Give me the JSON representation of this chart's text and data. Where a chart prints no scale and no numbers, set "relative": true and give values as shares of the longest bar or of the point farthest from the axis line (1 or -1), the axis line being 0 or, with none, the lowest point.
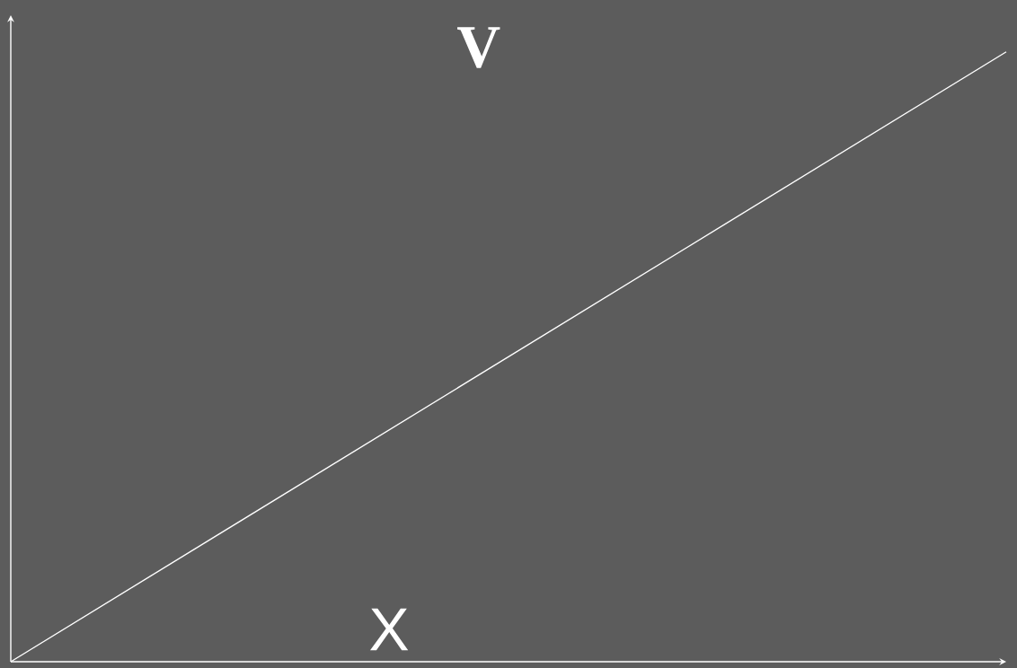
{
  "chart_data": {
    "type": "line",
    "relative": true,
    "xlabel": "X",
    "ylabel": "V",
    "categories": [
      null,
      null
    ],
    "series": [
      {
        "color": "#ffffff",
        "values": [
          0,
          1
        ]
      }
    ],
    "marker": "none",
    "line_style": "solid"
  }
}
